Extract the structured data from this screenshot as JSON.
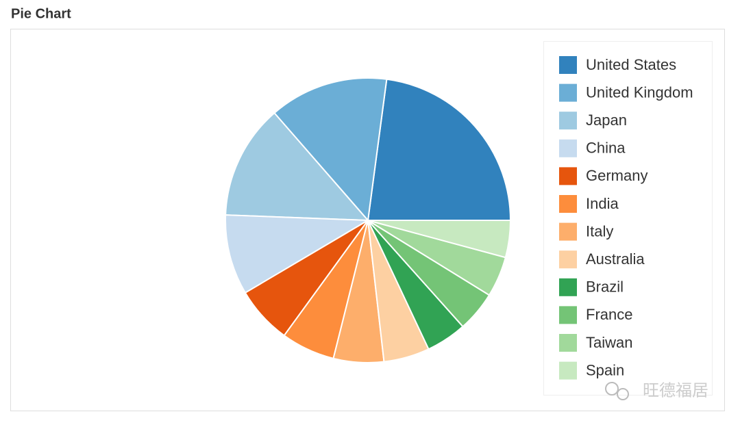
{
  "chart_data": {
    "type": "pie",
    "title": "Pie Chart",
    "categories": [
      "United States",
      "United Kingdom",
      "Japan",
      "China",
      "Germany",
      "India",
      "Italy",
      "Australia",
      "Brazil",
      "France",
      "Taiwan",
      "Spain"
    ],
    "values": [
      22.9,
      13.5,
      13.0,
      9.1,
      6.5,
      6.1,
      5.7,
      5.2,
      4.6,
      4.6,
      4.6,
      4.2
    ],
    "colors": [
      "#3182bd",
      "#6baed6",
      "#9ecae1",
      "#c6dbef",
      "#e6550d",
      "#fd8d3c",
      "#fdae6b",
      "#fdd0a2",
      "#31a354",
      "#74c476",
      "#a1d99b",
      "#c7e9c0"
    ],
    "legend": "right"
  },
  "watermark": "旺德福居"
}
